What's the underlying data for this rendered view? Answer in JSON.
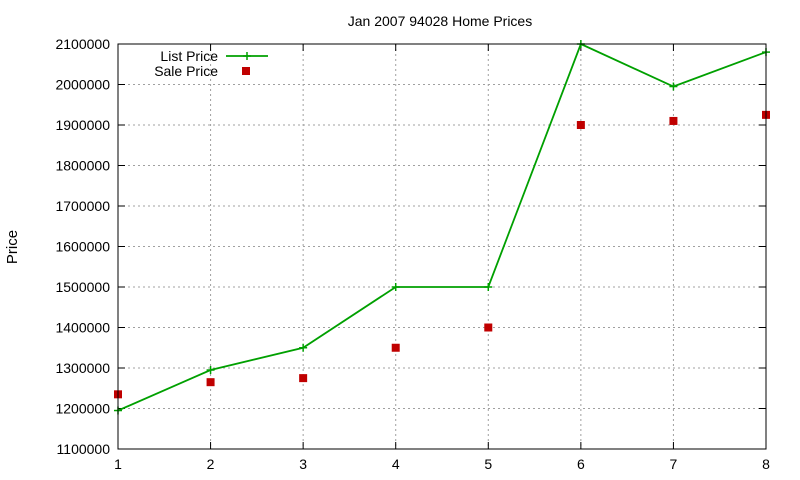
{
  "chart_data": {
    "type": "line",
    "title": "Jan 2007 94028 Home Prices",
    "xlabel": "",
    "ylabel": "Price",
    "x": [
      1,
      2,
      3,
      4,
      5,
      6,
      7,
      8
    ],
    "xlim": [
      1,
      8
    ],
    "ylim": [
      1100000,
      2100000
    ],
    "xticks": [
      1,
      2,
      3,
      4,
      5,
      6,
      7,
      8
    ],
    "yticks": [
      1100000,
      1200000,
      1300000,
      1400000,
      1500000,
      1600000,
      1700000,
      1800000,
      1900000,
      2000000,
      2100000
    ],
    "grid": true,
    "legend_position": "top-left",
    "series": [
      {
        "name": "List Price",
        "style": "linespoints",
        "color": "#00a000",
        "values": [
          1195000,
          1295000,
          1350000,
          1500000,
          1500000,
          2100000,
          1995000,
          2080000
        ]
      },
      {
        "name": "Sale Price",
        "style": "points",
        "color": "#c00000",
        "values": [
          1235000,
          1265000,
          1275000,
          1350000,
          1400000,
          1900000,
          1910000,
          1925000
        ]
      }
    ]
  }
}
